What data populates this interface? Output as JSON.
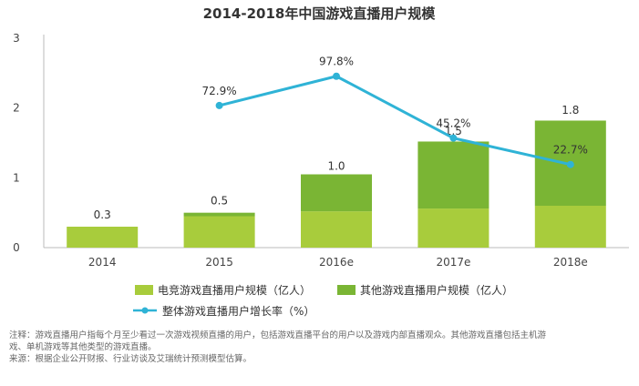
{
  "chart_data": {
    "type": "bar",
    "title": "2014-2018年中国游戏直播用户规模",
    "categories": [
      "2014",
      "2015",
      "2016e",
      "2017e",
      "2018e"
    ],
    "series": [
      {
        "name": "电竞游戏直播用户规模（亿人）",
        "values": [
          0.3,
          0.45,
          0.52,
          0.56,
          0.6
        ],
        "color": "#a8cc3c"
      },
      {
        "name": "其他游戏直播用户规模（亿人）",
        "values": [
          0.0,
          0.05,
          0.53,
          0.96,
          1.22
        ],
        "color": "#7ab534"
      }
    ],
    "totals": [
      0.3,
      0.5,
      1.0,
      1.5,
      1.8
    ],
    "total_labels": [
      "0.3",
      "0.5",
      "1.0",
      "1.5",
      "1.8"
    ],
    "line_series": {
      "name": "整体游戏直播用户增长率（%）",
      "color": "#2fb3d6",
      "categories": [
        "2015",
        "2016e",
        "2017e",
        "2018e"
      ],
      "values": [
        72.9,
        97.8,
        45.2,
        22.7
      ],
      "labels": [
        "72.9%",
        "97.8%",
        "45.2%",
        "22.7%"
      ]
    },
    "y_axis": {
      "ylim": [
        0,
        3
      ],
      "ticks": [
        "0",
        "1",
        "2",
        "3"
      ]
    },
    "xlabel": "",
    "ylabel": "",
    "grid": false
  },
  "notes": {
    "line1": "注释：游戏直播用户指每个月至少看过一次游戏视频直播的用户，包括游戏直播平台的用户以及游戏内部直播观众。其他游戏直播包括主机游",
    "line2": "戏、单机游戏等其他类型的游戏直播。",
    "line3": "来源：根据企业公开财报、行业访谈及艾瑞统计预测模型估算。"
  }
}
